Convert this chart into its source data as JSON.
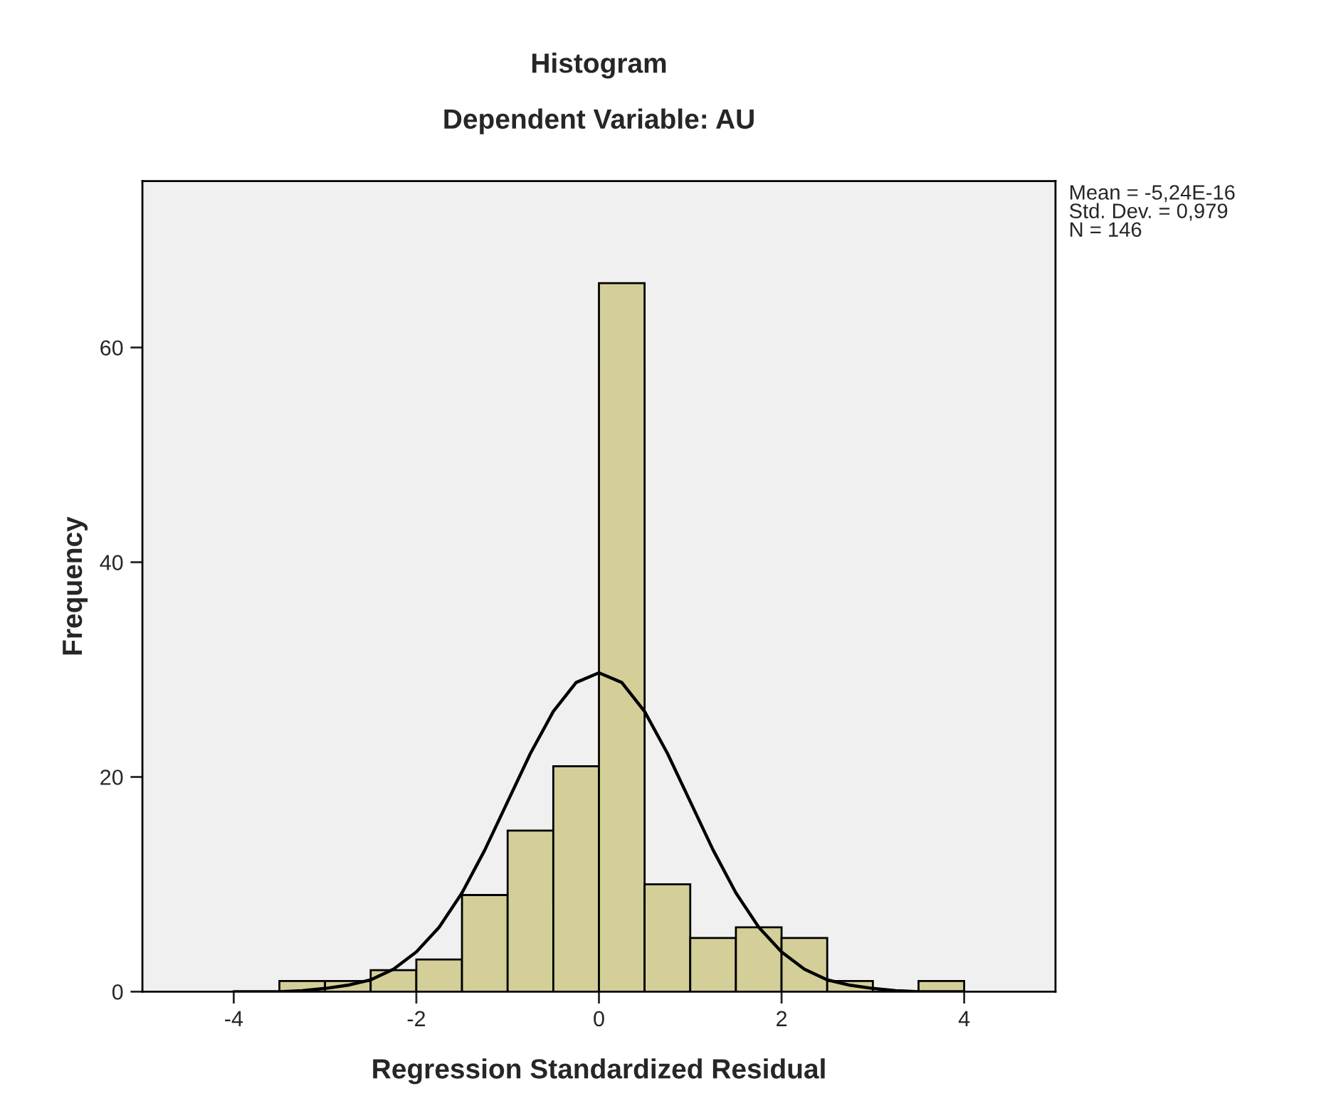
{
  "chart_data": {
    "type": "histogram",
    "title": "Histogram",
    "subtitle": "Dependent Variable: AU",
    "xlabel": "Regression Standardized Residual",
    "ylabel": "Frequency",
    "bins": [
      -3.5,
      -3.0,
      -2.5,
      -2.0,
      -1.5,
      -1.0,
      -0.5,
      0.0,
      0.5,
      1.0,
      1.5,
      2.0,
      2.5,
      3.0,
      3.5,
      4.0
    ],
    "values": [
      1,
      1,
      2,
      3,
      9,
      15,
      21,
      66,
      10,
      5,
      6,
      5,
      1,
      0,
      1
    ],
    "color": "#d4cf99",
    "series": [
      {
        "type": "line",
        "color": "#000000",
        "x": [
          -4,
          -3.75,
          -3.5,
          -3.25,
          -3,
          -2.75,
          -2.5,
          -2.25,
          -2,
          -1.75,
          -1.5,
          -1.25,
          -1,
          -0.75,
          -0.5,
          -0.25,
          0,
          0.25,
          0.5,
          0.75,
          1,
          1.25,
          1.5,
          1.75,
          2,
          2.25,
          2.5,
          2.75,
          3,
          3.25,
          3.5,
          3.75,
          4
        ],
        "values": [
          0.0,
          0.0,
          0.0,
          0.1,
          0.3,
          0.6,
          1.1,
          2.1,
          3.7,
          6.0,
          9.2,
          13.2,
          17.7,
          22.2,
          26.1,
          28.8,
          29.7,
          28.8,
          26.1,
          22.2,
          17.7,
          13.2,
          9.2,
          6.0,
          3.7,
          2.1,
          1.1,
          0.6,
          0.3,
          0.1,
          0.0,
          0.0,
          0.0
        ]
      }
    ],
    "xlim": [
      -5,
      5
    ],
    "xticks": [
      -4,
      -2,
      0,
      2,
      4
    ],
    "ylim": [
      0,
      75.5
    ],
    "yticks": [
      0,
      20,
      40,
      60
    ],
    "grid": false,
    "annotations": [
      "Mean = -5,24E-16",
      "Std. Dev. = 0,979",
      "N = 146"
    ]
  }
}
